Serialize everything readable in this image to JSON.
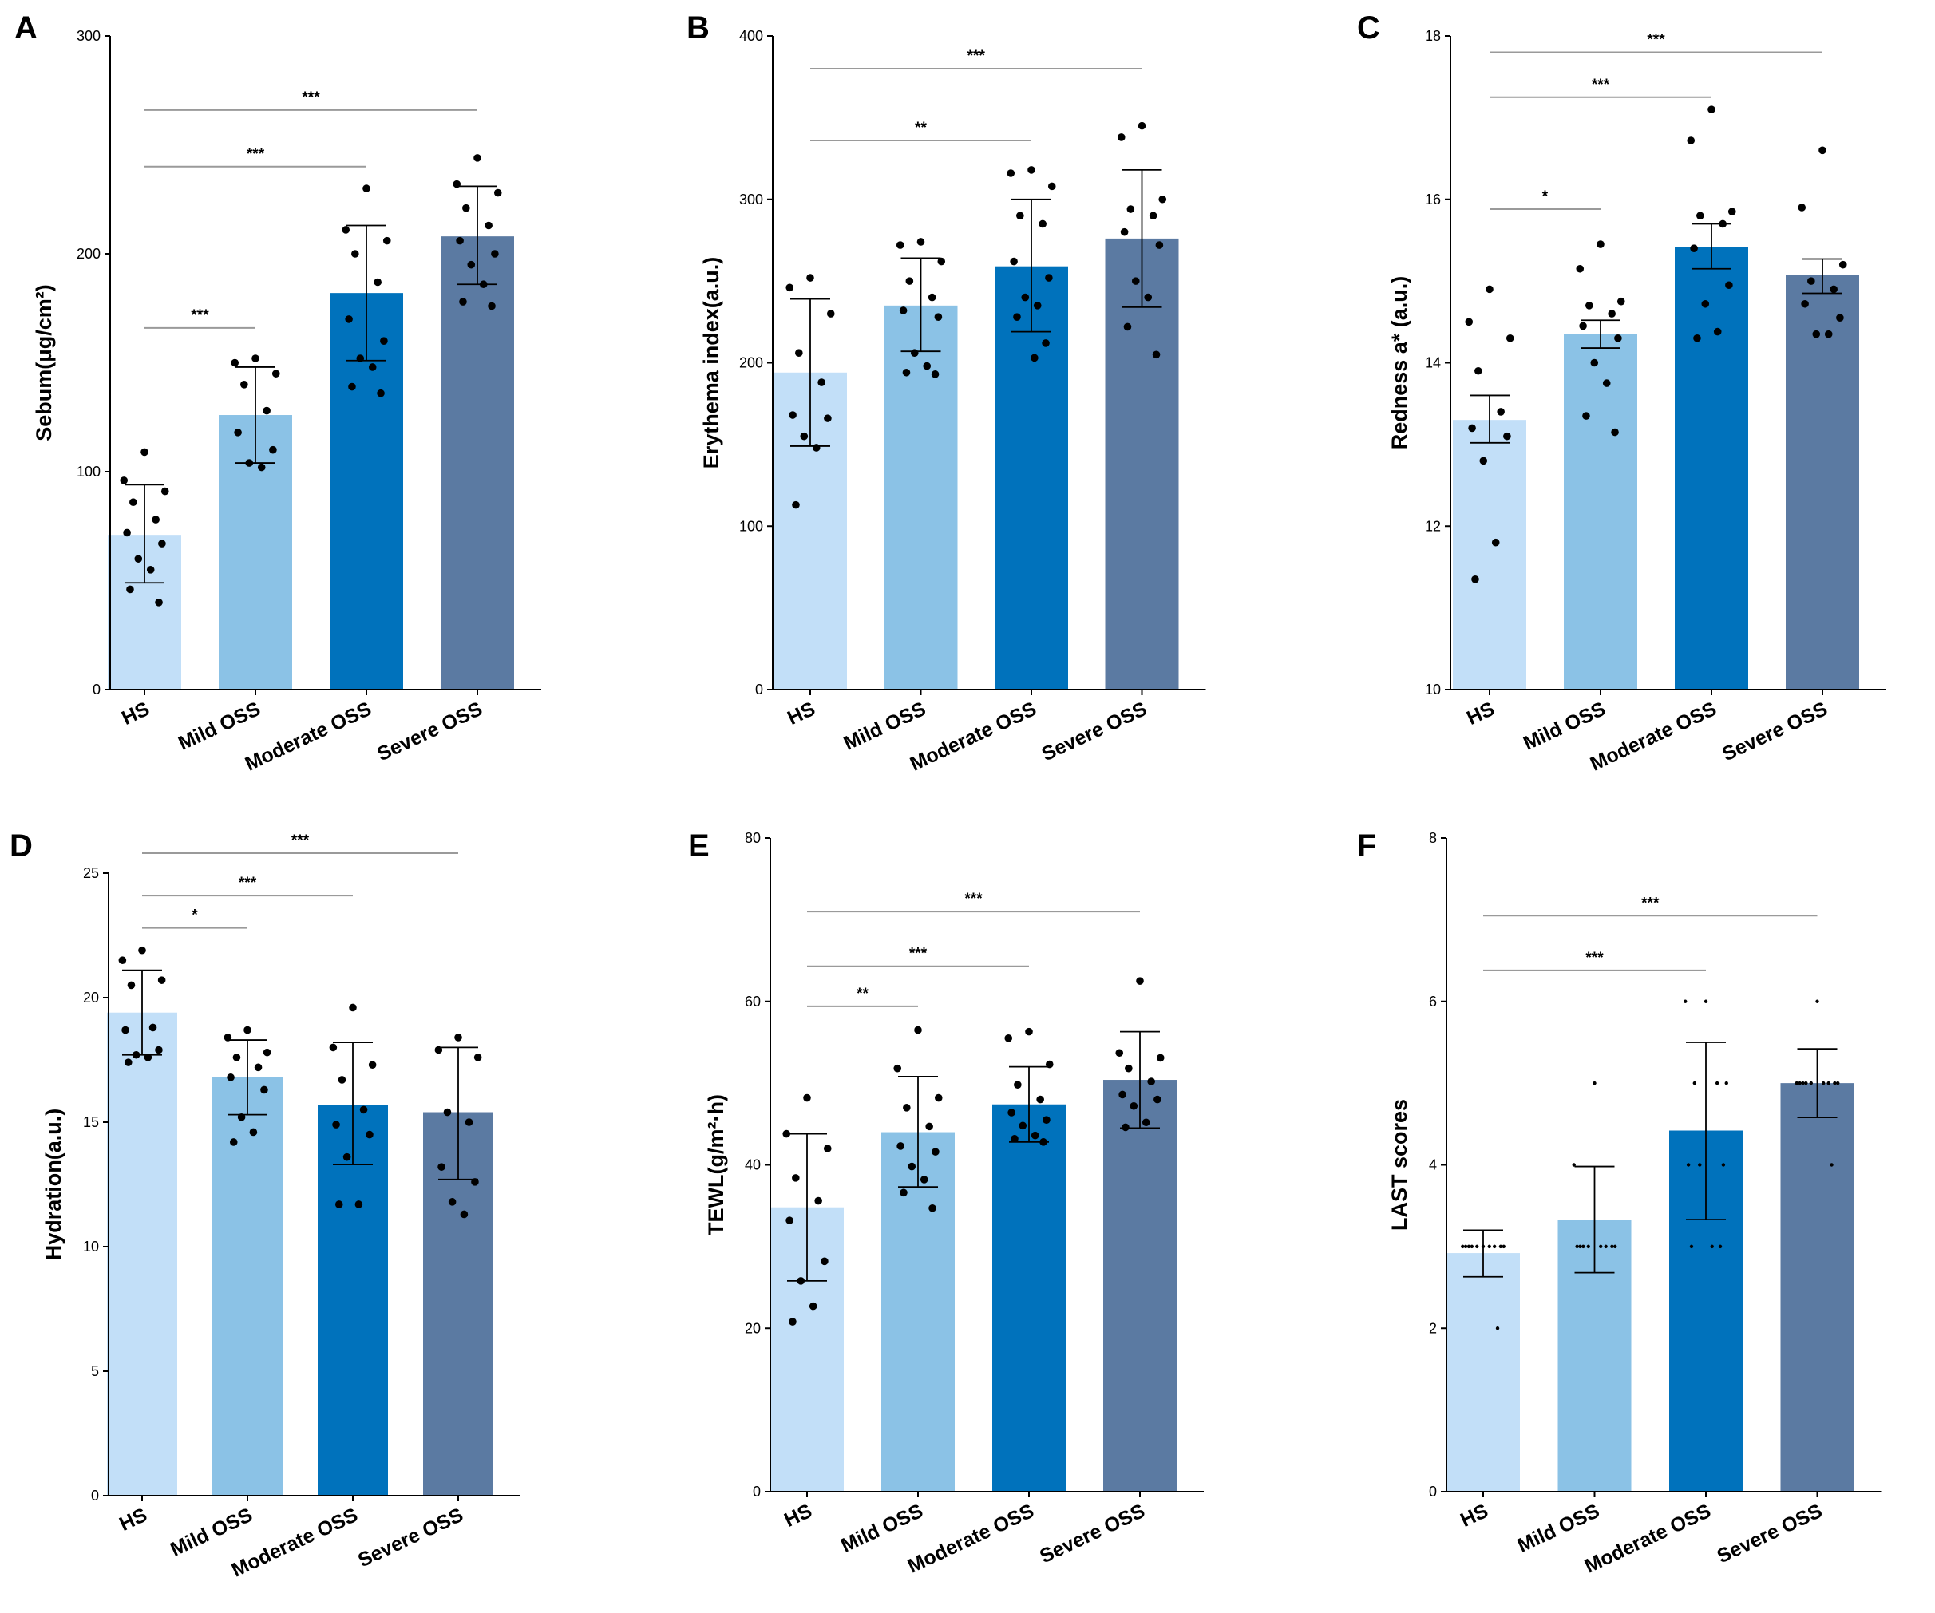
{
  "figure": {
    "colors": [
      "#c2dff8",
      "#8bc2e6",
      "#0072bc",
      "#5b7aa2"
    ],
    "bracket_color": "#9a9a9a",
    "axis_color": "#000000"
  },
  "chart_data": [
    {
      "letter": "A",
      "type": "bar",
      "title": "",
      "ylabel": "Sebum(μg/cm²)",
      "xlabel": "",
      "ylim": [
        0,
        300
      ],
      "yticks": [
        "0",
        "100",
        "200",
        "300"
      ],
      "categories": [
        "HS",
        "Mild OSS",
        "Moderate OSS",
        "Severe OSS"
      ],
      "values": [
        71,
        126,
        182,
        208
      ],
      "error": [
        [
          49,
          94
        ],
        [
          104,
          148
        ],
        [
          151,
          213
        ],
        [
          186,
          231
        ]
      ],
      "points": [
        [
          109,
          96,
          91,
          86,
          78,
          72,
          67,
          60,
          55,
          46,
          40
        ],
        [
          152,
          150,
          145,
          140,
          128,
          118,
          110,
          104,
          102
        ],
        [
          230,
          211,
          206,
          200,
          187,
          170,
          160,
          152,
          148,
          139,
          136
        ],
        [
          244,
          232,
          228,
          221,
          213,
          206,
          200,
          195,
          186,
          178,
          176
        ]
      ],
      "significance": [
        {
          "label": "***",
          "from": 0,
          "to": 3,
          "y": 266
        },
        {
          "label": "***",
          "from": 0,
          "to": 2,
          "y": 240
        },
        {
          "label": "***",
          "from": 0,
          "to": 1,
          "y": 166
        }
      ]
    },
    {
      "letter": "B",
      "type": "bar",
      "title": "",
      "ylabel": "Erythema index(a.u.)",
      "xlabel": "",
      "ylim": [
        0,
        400
      ],
      "yticks": [
        "0",
        "100",
        "200",
        "300",
        "400"
      ],
      "categories": [
        "HS",
        "Mild OSS",
        "Moderate OSS",
        "Severe OSS"
      ],
      "values": [
        194,
        235,
        259,
        276
      ],
      "error": [
        [
          149,
          239
        ],
        [
          207,
          264
        ],
        [
          219,
          300
        ],
        [
          234,
          318
        ]
      ],
      "points": [
        [
          252,
          246,
          230,
          206,
          188,
          168,
          166,
          155,
          148,
          113
        ],
        [
          274,
          272,
          262,
          250,
          240,
          232,
          228,
          206,
          198,
          194,
          193
        ],
        [
          318,
          316,
          308,
          290,
          285,
          262,
          252,
          240,
          235,
          228,
          212,
          203
        ],
        [
          345,
          338,
          300,
          294,
          290,
          280,
          272,
          250,
          240,
          222,
          205
        ]
      ],
      "significance": [
        {
          "label": "***",
          "from": 0,
          "to": 3,
          "y": 380
        },
        {
          "label": "**",
          "from": 0,
          "to": 2,
          "y": 336
        }
      ]
    },
    {
      "letter": "C",
      "type": "bar",
      "title": "",
      "ylabel": "Redness a* (a.u.)",
      "xlabel": "",
      "ylim": [
        10,
        18
      ],
      "yticks": [
        "10",
        "12",
        "14",
        "16",
        "18"
      ],
      "categories": [
        "HS",
        "Mild OSS",
        "Moderate OSS",
        "Severe OSS"
      ],
      "values": [
        13.3,
        14.35,
        15.42,
        15.07
      ],
      "error": [
        [
          13.02,
          13.6
        ],
        [
          14.18,
          14.52
        ],
        [
          15.15,
          15.7
        ],
        [
          14.85,
          15.27
        ]
      ],
      "points": [
        [
          14.9,
          14.5,
          14.3,
          13.9,
          13.4,
          13.2,
          13.1,
          12.8,
          11.8,
          11.35
        ],
        [
          15.45,
          15.15,
          14.75,
          14.7,
          14.6,
          14.45,
          14.3,
          14.0,
          13.75,
          13.35,
          13.15
        ],
        [
          17.1,
          16.72,
          15.85,
          15.8,
          15.7,
          15.4,
          14.95,
          14.72,
          14.38,
          14.3
        ],
        [
          16.6,
          15.9,
          15.2,
          15.0,
          14.9,
          14.72,
          14.55,
          14.35,
          14.35
        ]
      ],
      "significance": [
        {
          "label": "***",
          "from": 0,
          "to": 3,
          "y": 17.8
        },
        {
          "label": "***",
          "from": 0,
          "to": 2,
          "y": 17.25
        },
        {
          "label": "*",
          "from": 0,
          "to": 1,
          "y": 15.88
        }
      ]
    },
    {
      "letter": "D",
      "type": "bar",
      "title": "",
      "ylabel": "Hydration(a.u.)",
      "xlabel": "",
      "ylim": [
        0,
        25
      ],
      "yticks": [
        "0",
        "5",
        "10",
        "15",
        "20",
        "25"
      ],
      "categories": [
        "HS",
        "Mild OSS",
        "Moderate OSS",
        "Severe OSS"
      ],
      "values": [
        19.4,
        16.8,
        15.7,
        15.4
      ],
      "error": [
        [
          17.7,
          21.1
        ],
        [
          15.3,
          18.3
        ],
        [
          13.3,
          18.2
        ],
        [
          12.7,
          18.0
        ]
      ],
      "points": [
        [
          21.9,
          21.5,
          20.7,
          20.5,
          18.8,
          18.7,
          17.9,
          17.7,
          17.6,
          17.4
        ],
        [
          18.7,
          18.4,
          17.8,
          17.6,
          17.2,
          16.8,
          16.3,
          15.2,
          14.6,
          14.2
        ],
        [
          19.6,
          18.0,
          17.3,
          16.7,
          15.5,
          14.9,
          14.5,
          13.6,
          11.7,
          11.7
        ],
        [
          18.4,
          17.9,
          17.6,
          15.4,
          15.0,
          13.2,
          12.6,
          11.8,
          11.3
        ]
      ],
      "significance": [
        {
          "label": "***",
          "from": 0,
          "to": 3,
          "y": 25.8
        },
        {
          "label": "***",
          "from": 0,
          "to": 2,
          "y": 24.1
        },
        {
          "label": "*",
          "from": 0,
          "to": 1,
          "y": 22.8
        }
      ]
    },
    {
      "letter": "E",
      "type": "bar",
      "title": "",
      "ylabel": "TEWL(g/m²·h)",
      "xlabel": "",
      "ylim": [
        0,
        80
      ],
      "yticks": [
        "0",
        "20",
        "40",
        "60",
        "80"
      ],
      "categories": [
        "HS",
        "Mild OSS",
        "Moderate OSS",
        "Severe OSS"
      ],
      "values": [
        34.8,
        44.0,
        47.4,
        50.4
      ],
      "error": [
        [
          25.8,
          43.8
        ],
        [
          37.3,
          50.8
        ],
        [
          42.8,
          52.0
        ],
        [
          44.5,
          56.3
        ]
      ],
      "points": [
        [
          48.2,
          43.8,
          42.0,
          38.4,
          35.6,
          33.2,
          28.2,
          25.8,
          22.7,
          20.8
        ],
        [
          56.5,
          51.8,
          48.2,
          47.0,
          44.7,
          42.3,
          41.6,
          39.8,
          38.2,
          36.6,
          34.7
        ],
        [
          56.3,
          55.5,
          52.3,
          49.8,
          48.0,
          46.4,
          45.5,
          44.8,
          43.6,
          43.2,
          42.8
        ],
        [
          62.5,
          53.7,
          53.1,
          51.8,
          50.2,
          48.6,
          48.0,
          47.2,
          45.2,
          44.6
        ]
      ],
      "significance": [
        {
          "label": "***",
          "from": 0,
          "to": 3,
          "y": 71
        },
        {
          "label": "***",
          "from": 0,
          "to": 2,
          "y": 64.3
        },
        {
          "label": "**",
          "from": 0,
          "to": 1,
          "y": 59.4
        }
      ]
    },
    {
      "letter": "F",
      "type": "bar",
      "title": "",
      "ylabel": "LAST scores",
      "xlabel": "",
      "ylim": [
        0,
        8
      ],
      "yticks": [
        "0",
        "2",
        "4",
        "6",
        "8"
      ],
      "categories": [
        "HS",
        "Mild OSS",
        "Moderate OSS",
        "Severe OSS"
      ],
      "values": [
        2.92,
        3.33,
        4.42,
        5.0
      ],
      "error": [
        [
          2.63,
          3.2
        ],
        [
          2.68,
          3.98
        ],
        [
          3.33,
          5.5
        ],
        [
          4.58,
          5.42
        ]
      ],
      "points": [
        [
          3,
          3,
          3,
          3,
          3,
          3,
          3,
          3,
          3,
          3,
          2
        ],
        [
          5,
          4,
          3,
          3,
          3,
          3,
          3,
          3,
          3,
          3
        ],
        [
          6,
          6,
          5,
          5,
          5,
          4,
          4,
          4,
          3,
          3,
          3
        ],
        [
          6,
          5,
          5,
          5,
          5,
          5,
          5,
          5,
          5,
          5,
          4
        ]
      ],
      "significance": [
        {
          "label": "***",
          "from": 0,
          "to": 3,
          "y": 7.05
        },
        {
          "label": "***",
          "from": 0,
          "to": 2,
          "y": 6.38
        }
      ]
    }
  ]
}
